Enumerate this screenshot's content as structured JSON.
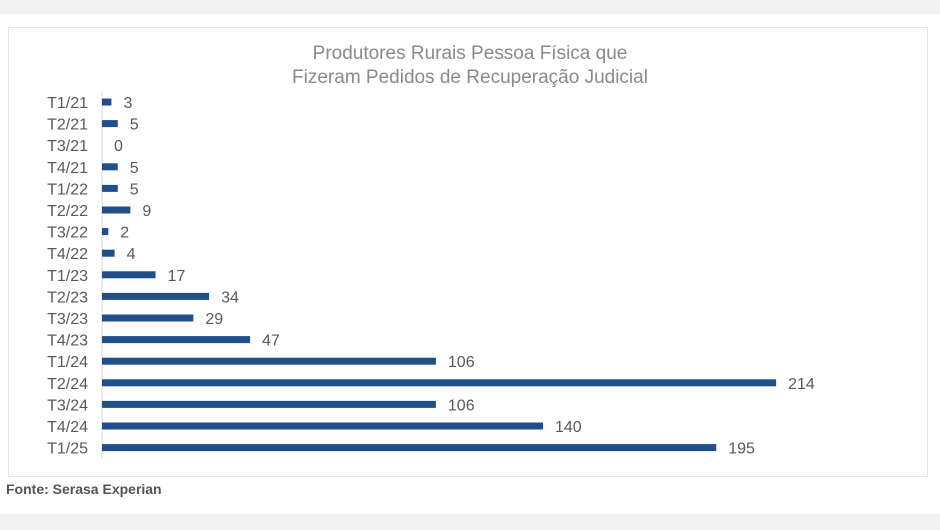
{
  "chart_data": {
    "type": "bar",
    "orientation": "horizontal",
    "title": "Produtores Rurais Pessoa Física que Fizeram Pedidos de Recuperação Judicial",
    "title_lines": [
      "Produtores Rurais Pessoa Física que",
      "Fizeram Pedidos de Recuperação Judicial"
    ],
    "categories": [
      "T1/21",
      "T2/21",
      "T3/21",
      "T4/21",
      "T1/22",
      "T2/22",
      "T3/22",
      "T4/22",
      "T1/23",
      "T2/23",
      "T3/23",
      "T4/23",
      "T1/24",
      "T2/24",
      "T3/24",
      "T4/24",
      "T1/25"
    ],
    "values": [
      3,
      5,
      0,
      5,
      5,
      9,
      2,
      4,
      17,
      34,
      29,
      47,
      106,
      214,
      106,
      140,
      195
    ],
    "xlim": [
      0,
      214
    ],
    "bar_color": "#1f4e8c",
    "data_labels": true,
    "grid": false,
    "legend": "none"
  },
  "source": "Fonte: Serasa Experian"
}
